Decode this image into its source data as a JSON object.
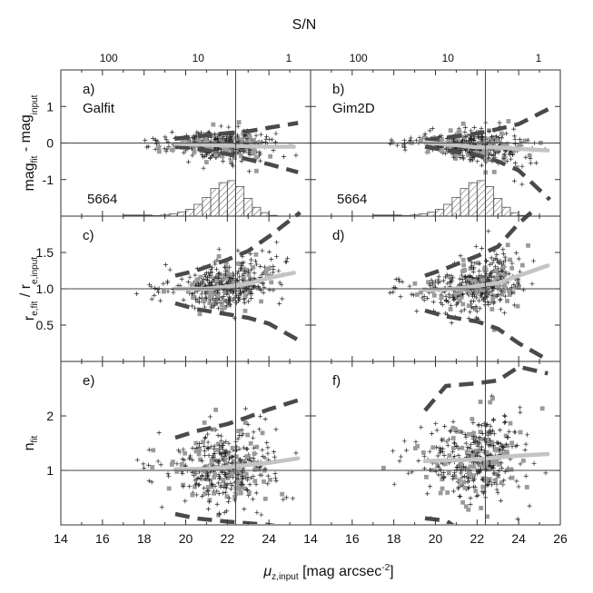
{
  "chart_data": {
    "type": "scatter",
    "figure": {
      "top_axis_title": "S/N",
      "top_ticks": [
        {
          "label": "100",
          "mu": 16.3
        },
        {
          "label": "10",
          "mu": 20.6
        },
        {
          "label": "1",
          "mu": 24.95
        }
      ],
      "xlabel": {
        "mu": "μ",
        "sub": "z,input",
        "rest": " [mag arcsec",
        "sup": "-2",
        "end": "]"
      },
      "columns": [
        {
          "id": "galfit",
          "xlim": [
            14,
            26
          ],
          "xticks": [
            14,
            16,
            18,
            20,
            22,
            24
          ]
        },
        {
          "id": "gim2d",
          "xlim": [
            14,
            26
          ],
          "xticks": [
            14,
            16,
            18,
            20,
            22,
            24,
            26
          ]
        }
      ],
      "vline_mu": 22.4
    },
    "rows": [
      {
        "id": "mag",
        "ylabel": {
          "main": "mag",
          "s1": "fit",
          "mid": " - mag",
          "s2": "input"
        },
        "ylim": [
          -2.0,
          2.0
        ],
        "yticks": [
          {
            "v": 1,
            "label": "1"
          },
          {
            "v": 0,
            "label": "0"
          },
          {
            "v": -1,
            "label": "-1"
          }
        ],
        "refline": 0,
        "panels": [
          {
            "label": "a)",
            "code": "Galfit",
            "count": "5664",
            "median": [
              [
                19.5,
                -0.02
              ],
              [
                21,
                -0.05
              ],
              [
                22,
                -0.07
              ],
              [
                23,
                -0.09
              ],
              [
                24,
                -0.1
              ],
              [
                25.2,
                -0.1
              ]
            ],
            "upper": [
              [
                19.5,
                0.12
              ],
              [
                20.5,
                0.18
              ],
              [
                22,
                0.27
              ],
              [
                23,
                0.32
              ],
              [
                24,
                0.42
              ],
              [
                25.4,
                0.55
              ]
            ],
            "lower": [
              [
                19.5,
                -0.1
              ],
              [
                20.5,
                -0.15
              ],
              [
                22,
                -0.3
              ],
              [
                23,
                -0.45
              ],
              [
                24,
                -0.58
              ],
              [
                25.4,
                -0.8
              ]
            ],
            "spread": [
              0.14,
              0.26
            ],
            "center": 21.9,
            "n_points": 420
          },
          {
            "label": "b)",
            "code": "Gim2D",
            "count": "5664",
            "median": [
              [
                19.5,
                0.02
              ],
              [
                21,
                -0.06
              ],
              [
                22,
                -0.12
              ],
              [
                23,
                -0.12
              ],
              [
                24,
                -0.16
              ],
              [
                25.4,
                -0.2
              ]
            ],
            "upper": [
              [
                19.5,
                0.08
              ],
              [
                20.5,
                0.15
              ],
              [
                22,
                0.26
              ],
              [
                23,
                0.38
              ],
              [
                24,
                0.52
              ],
              [
                25.5,
                0.95
              ]
            ],
            "lower": [
              [
                19.5,
                -0.1
              ],
              [
                20.5,
                -0.2
              ],
              [
                22,
                -0.33
              ],
              [
                23,
                -0.5
              ],
              [
                24,
                -0.75
              ],
              [
                25.5,
                -1.55
              ]
            ],
            "spread": [
              0.14,
              0.28
            ],
            "center": 21.9,
            "n_points": 420
          }
        ],
        "histogram": {
          "bin_edges": [
            18.4,
            18.8,
            19.2,
            19.6,
            20.0,
            20.4,
            20.8,
            21.2,
            21.6,
            22.0,
            22.4,
            22.8,
            23.2,
            23.6,
            24.0,
            24.4
          ],
          "counts": [
            10,
            22,
            45,
            80,
            140,
            240,
            380,
            560,
            680,
            720,
            600,
            360,
            180,
            70,
            15
          ],
          "baseline": -2.0,
          "peak_value": -1.03
        }
      },
      {
        "id": "re",
        "ylabel": {
          "main": "r",
          "s1": "e,fit",
          "mid": " / r",
          "s2": "e,input"
        },
        "ylim": [
          0.0,
          2.0
        ],
        "yticks": [
          {
            "v": 1.5,
            "label": "1.5"
          },
          {
            "v": 1.0,
            "label": "1.0"
          },
          {
            "v": 0.5,
            "label": "0.5"
          }
        ],
        "refline": 1.0,
        "panels": [
          {
            "label": "c)",
            "median": [
              [
                19.5,
                1.0
              ],
              [
                21,
                1.0
              ],
              [
                22,
                1.03
              ],
              [
                23,
                1.07
              ],
              [
                24,
                1.15
              ],
              [
                25.2,
                1.22
              ]
            ],
            "upper": [
              [
                19.5,
                1.18
              ],
              [
                20.5,
                1.25
              ],
              [
                22,
                1.4
              ],
              [
                23,
                1.52
              ],
              [
                24,
                1.72
              ],
              [
                25.5,
                2.05
              ]
            ],
            "lower": [
              [
                19.5,
                0.8
              ],
              [
                20.5,
                0.72
              ],
              [
                22,
                0.65
              ],
              [
                23,
                0.6
              ],
              [
                24,
                0.52
              ],
              [
                25.5,
                0.28
              ]
            ],
            "spread": [
              0.12,
              0.2
            ],
            "center": 22.0,
            "n_points": 420
          },
          {
            "label": "d)",
            "median": [
              [
                19.5,
                0.98
              ],
              [
                21,
                1.0
              ],
              [
                22,
                1.04
              ],
              [
                23,
                1.08
              ],
              [
                24,
                1.18
              ],
              [
                25.4,
                1.32
              ]
            ],
            "upper": [
              [
                19.5,
                1.18
              ],
              [
                20.5,
                1.28
              ],
              [
                22,
                1.45
              ],
              [
                23,
                1.58
              ],
              [
                24,
                1.9
              ],
              [
                24.6,
                2.05
              ]
            ],
            "lower": [
              [
                19.5,
                0.7
              ],
              [
                20.5,
                0.62
              ],
              [
                22,
                0.55
              ],
              [
                23,
                0.45
              ],
              [
                24,
                0.25
              ],
              [
                25.4,
                0.02
              ]
            ],
            "spread": [
              0.12,
              0.25
            ],
            "center": 22.0,
            "n_points": 420
          }
        ]
      },
      {
        "id": "n",
        "ylabel": {
          "main": "n",
          "s1": "fit",
          "mid": "",
          "s2": ""
        },
        "ylim": [
          0.0,
          3.0
        ],
        "yticks": [
          {
            "v": 2,
            "label": "2"
          },
          {
            "v": 1,
            "label": "1"
          }
        ],
        "refline": 1.0,
        "panels": [
          {
            "label": "e)",
            "median": [
              [
                19.5,
                1.02
              ],
              [
                21,
                1.03
              ],
              [
                22,
                1.06
              ],
              [
                23,
                1.1
              ],
              [
                24,
                1.14
              ],
              [
                25.4,
                1.22
              ]
            ],
            "upper": [
              [
                19.5,
                1.6
              ],
              [
                20.5,
                1.72
              ],
              [
                22,
                1.85
              ],
              [
                23,
                1.98
              ],
              [
                24,
                2.12
              ],
              [
                25.5,
                2.3
              ]
            ],
            "lower": [
              [
                19.5,
                0.2
              ],
              [
                20.5,
                0.12
              ],
              [
                22,
                0.06
              ],
              [
                23,
                0.03
              ],
              [
                24,
                0.0
              ],
              [
                25.2,
                -0.08
              ]
            ],
            "spread": [
              0.28,
              0.4
            ],
            "center": 22.0,
            "n_points": 420
          },
          {
            "label": "f)",
            "median": [
              [
                19.5,
                1.17
              ],
              [
                21,
                1.19
              ],
              [
                22,
                1.2
              ],
              [
                23,
                1.24
              ],
              [
                24,
                1.27
              ],
              [
                25.4,
                1.3
              ]
            ],
            "upper": [
              [
                19.5,
                2.1
              ],
              [
                20.5,
                2.55
              ],
              [
                22,
                2.6
              ],
              [
                23,
                2.65
              ],
              [
                24,
                2.9
              ],
              [
                25.4,
                2.78
              ]
            ],
            "lower": [
              [
                19.5,
                0.12
              ],
              [
                20.5,
                0.08
              ],
              [
                21,
                -0.05
              ]
            ],
            "spread": [
              0.28,
              0.45
            ],
            "center": 22.0,
            "n_points": 420
          }
        ]
      }
    ]
  }
}
